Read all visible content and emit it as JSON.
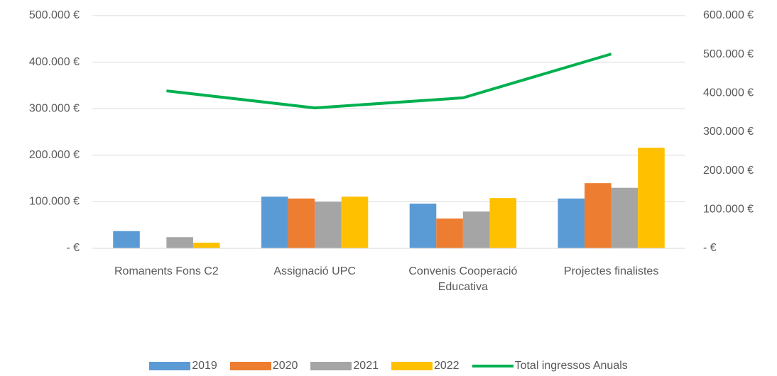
{
  "chart_data": {
    "type": "bar",
    "categories": [
      "Romanents Fons C2",
      "Assignació UPC",
      "Convenis Cooperació Educativa",
      "Projectes finalistes"
    ],
    "series": [
      {
        "name": "2019",
        "color": "#5b9bd5",
        "values": [
          37000,
          111000,
          96000,
          107000
        ]
      },
      {
        "name": "2020",
        "color": "#ed7d31",
        "values": [
          0,
          107000,
          64000,
          140000
        ]
      },
      {
        "name": "2021",
        "color": "#a5a5a5",
        "values": [
          24000,
          100000,
          79000,
          130000
        ]
      },
      {
        "name": "2022",
        "color": "#ffc000",
        "values": [
          12000,
          111000,
          108000,
          216000
        ]
      },
      {
        "name": "Total ingressos Anuals",
        "color": "#00b050",
        "type": "line",
        "axis": "y2",
        "values": [
          406000,
          362000,
          388000,
          501000
        ]
      }
    ],
    "ylim": [
      0,
      500000
    ],
    "yticks": [
      {
        "value": 0,
        "label": "-  €"
      },
      {
        "value": 100000,
        "label": "100.000 €"
      },
      {
        "value": 200000,
        "label": "200.000 €"
      },
      {
        "value": 300000,
        "label": "300.000 €"
      },
      {
        "value": 400000,
        "label": "400.000 €"
      },
      {
        "value": 500000,
        "label": "500.000 €"
      }
    ],
    "y2lim": [
      0,
      600000
    ],
    "y2ticks": [
      {
        "value": 0,
        "label": "-  €"
      },
      {
        "value": 100000,
        "label": "100.000 €"
      },
      {
        "value": 200000,
        "label": "200.000 €"
      },
      {
        "value": 300000,
        "label": "300.000 €"
      },
      {
        "value": 400000,
        "label": "400.000 €"
      },
      {
        "value": 500000,
        "label": "500.000 €"
      },
      {
        "value": 600000,
        "label": "600.000 €"
      }
    ],
    "grid": true,
    "legend": "bottom"
  }
}
